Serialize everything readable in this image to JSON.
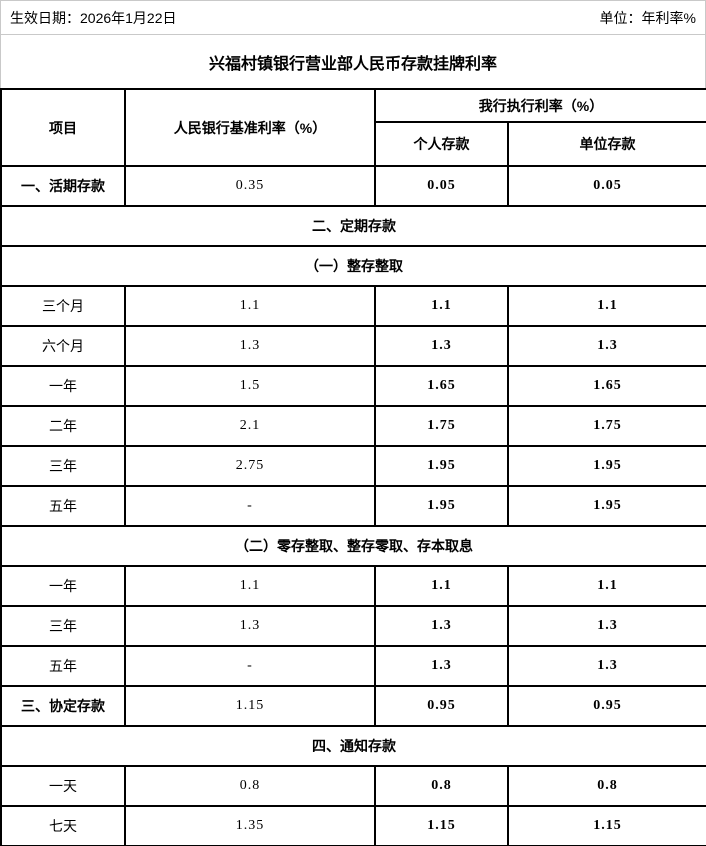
{
  "page": {
    "effective_date": "生效日期：2026年1月22日",
    "unit": "单位：年利率%",
    "title": "兴福村镇银行营业部人民币存款挂牌利率"
  },
  "table": {
    "header": {
      "item": "项目",
      "pboc": "人民银行基准利率（%）",
      "exec": "我行执行利率（%）",
      "personal": "个人存款",
      "corporate": "单位存款"
    },
    "rows": [
      {
        "type": "data",
        "label": "一、活期存款",
        "pboc": "0.35",
        "personal": "0.05",
        "corporate": "0.05"
      },
      {
        "type": "span",
        "label": "二、定期存款"
      },
      {
        "type": "span",
        "label": "（一）整存整取"
      },
      {
        "type": "sub",
        "label": "三个月",
        "pboc": "1.1",
        "personal": "1.1",
        "corporate": "1.1"
      },
      {
        "type": "sub",
        "label": "六个月",
        "pboc": "1.3",
        "personal": "1.3",
        "corporate": "1.3"
      },
      {
        "type": "sub",
        "label": "一年",
        "pboc": "1.5",
        "personal": "1.65",
        "corporate": "1.65"
      },
      {
        "type": "sub",
        "label": "二年",
        "pboc": "2.1",
        "personal": "1.75",
        "corporate": "1.75"
      },
      {
        "type": "sub",
        "label": "三年",
        "pboc": "2.75",
        "personal": "1.95",
        "corporate": "1.95"
      },
      {
        "type": "sub",
        "label": "五年",
        "pboc": "-",
        "personal": "1.95",
        "corporate": "1.95"
      },
      {
        "type": "span",
        "label": "（二）零存整取、整存零取、存本取息"
      },
      {
        "type": "sub",
        "label": "一年",
        "pboc": "1.1",
        "personal": "1.1",
        "corporate": "1.1"
      },
      {
        "type": "sub",
        "label": "三年",
        "pboc": "1.3",
        "personal": "1.3",
        "corporate": "1.3"
      },
      {
        "type": "sub",
        "label": "五年",
        "pboc": "-",
        "personal": "1.3",
        "corporate": "1.3"
      },
      {
        "type": "data",
        "label": "三、协定存款",
        "pboc": "1.15",
        "personal": "0.95",
        "corporate": "0.95"
      },
      {
        "type": "span",
        "label": "四、通知存款"
      },
      {
        "type": "sub",
        "label": "一天",
        "pboc": "0.8",
        "personal": "0.8",
        "corporate": "0.8"
      },
      {
        "type": "sub",
        "label": "七天",
        "pboc": "1.35",
        "personal": "1.15",
        "corporate": "1.15"
      }
    ]
  },
  "colors": {
    "table_border": "#000000",
    "frame_border": "#c9c9c9",
    "background": "#ffffff",
    "text": "#000000"
  }
}
